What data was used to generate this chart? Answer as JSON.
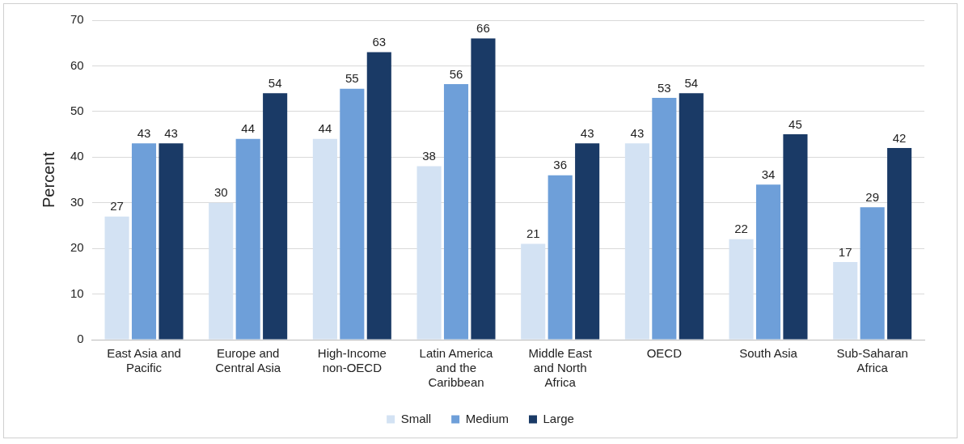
{
  "chart_data": {
    "type": "bar",
    "ylabel": "Percent",
    "categories": [
      "East Asia and Pacific",
      "Europe and Central Asia",
      "High-Income non-OECD",
      "Latin America and the Caribbean",
      "Middle East and North Africa",
      "OECD",
      "South Asia",
      "Sub-Saharan Africa"
    ],
    "series": [
      {
        "name": "Small",
        "color": "#d3e2f3",
        "values": [
          27,
          30,
          44,
          38,
          21,
          43,
          22,
          17
        ]
      },
      {
        "name": "Medium",
        "color": "#6e9fd9",
        "values": [
          43,
          44,
          55,
          56,
          36,
          53,
          34,
          29
        ]
      },
      {
        "name": "Large",
        "color": "#1a3a66",
        "values": [
          43,
          54,
          63,
          66,
          43,
          54,
          45,
          42
        ]
      }
    ],
    "ylim": [
      0,
      70
    ],
    "yticks": [
      0,
      10,
      20,
      30,
      40,
      50,
      60,
      70
    ],
    "grid": "y",
    "legend": "bottom",
    "data_labels": true
  }
}
